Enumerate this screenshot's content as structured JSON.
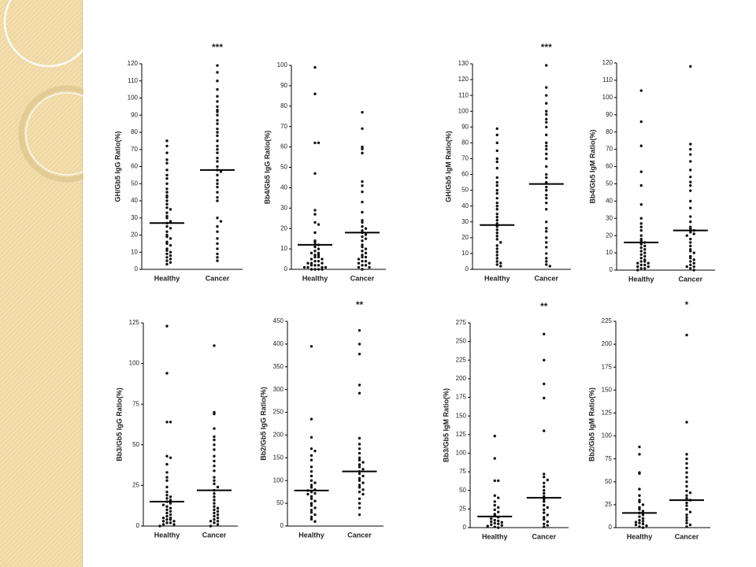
{
  "chart_data": [
    {
      "type": "strip",
      "y_label": "GH/Gb5 IgG Ratio(%)",
      "significance": "***",
      "categories": [
        "Healthy",
        "Cancer"
      ],
      "ylim": [
        0,
        120
      ],
      "yticks": [
        0,
        10,
        20,
        30,
        40,
        50,
        60,
        70,
        80,
        90,
        100,
        110,
        120
      ],
      "means": [
        27,
        58
      ],
      "values": [
        [
          75,
          72,
          68,
          64,
          62,
          58,
          55,
          53,
          50,
          47,
          45,
          43,
          42,
          40,
          38,
          36,
          35,
          33,
          31,
          30,
          28,
          27,
          25,
          24,
          22,
          20,
          19,
          18,
          16,
          15,
          14,
          12,
          11,
          10,
          9,
          8,
          7,
          6,
          5,
          4,
          3
        ],
        [
          119,
          115,
          110,
          105,
          101,
          98,
          95,
          93,
          92,
          90,
          87,
          85,
          82,
          80,
          78,
          75,
          72,
          70,
          68,
          65,
          63,
          60,
          58,
          57,
          55,
          52,
          50,
          48,
          45,
          42,
          40,
          30,
          28,
          25,
          22,
          18,
          15,
          12,
          9,
          7,
          5
        ]
      ]
    },
    {
      "type": "strip",
      "y_label": "Bb4/Gb5 IgG Ratio(%)",
      "categories": [
        "Healthy",
        "Cancer"
      ],
      "ylim": [
        0,
        100
      ],
      "yticks": [
        0,
        10,
        20,
        30,
        40,
        50,
        60,
        70,
        80,
        90,
        100
      ],
      "means": [
        12,
        18
      ],
      "values": [
        [
          99,
          86,
          62,
          62,
          47,
          29,
          27,
          23,
          22,
          18,
          14,
          13,
          12,
          11,
          10,
          9,
          8,
          8,
          7,
          7,
          6,
          6,
          5,
          5,
          4,
          4,
          3,
          3,
          3,
          2,
          2,
          2,
          1,
          1,
          1,
          1,
          0,
          0,
          0,
          0
        ],
        [
          77,
          69,
          60,
          59,
          57,
          43,
          41,
          38,
          33,
          28,
          24,
          23,
          21,
          20,
          19,
          18,
          17,
          16,
          15,
          14,
          12,
          11,
          10,
          9,
          8,
          7,
          6,
          6,
          5,
          4,
          4,
          3,
          3,
          2,
          2,
          1,
          1,
          0
        ]
      ]
    },
    {
      "type": "strip",
      "y_label": "GH/Gb5 IgM Ratio(%)",
      "significance": "***",
      "categories": [
        "Healthy",
        "Cancer"
      ],
      "ylim": [
        0,
        130
      ],
      "yticks": [
        0,
        10,
        20,
        30,
        40,
        50,
        60,
        70,
        80,
        90,
        100,
        110,
        120,
        130
      ],
      "means": [
        28,
        54
      ],
      "values": [
        [
          89,
          85,
          80,
          75,
          70,
          68,
          64,
          58,
          55,
          53,
          50,
          48,
          45,
          42,
          40,
          38,
          35,
          33,
          31,
          29,
          27,
          25,
          23,
          21,
          19,
          17,
          15,
          13,
          11,
          9,
          7,
          5,
          4,
          3,
          2
        ],
        [
          129,
          115,
          110,
          105,
          100,
          98,
          95,
          93,
          90,
          85,
          80,
          78,
          76,
          73,
          70,
          65,
          60,
          58,
          55,
          52,
          50,
          47,
          45,
          42,
          38,
          30,
          26,
          24,
          20,
          17,
          14,
          10,
          7,
          5,
          3,
          2
        ]
      ]
    },
    {
      "type": "strip",
      "y_label": "Bb4/Gb5 IgM Ratio(%)",
      "categories": [
        "Healthy",
        "Cancer"
      ],
      "ylim": [
        0,
        120
      ],
      "yticks": [
        0,
        10,
        20,
        30,
        40,
        50,
        60,
        70,
        80,
        90,
        100,
        110,
        120
      ],
      "means": [
        16,
        23
      ],
      "values": [
        [
          104,
          86,
          72,
          57,
          49,
          38,
          30,
          27,
          25,
          23,
          20,
          18,
          17,
          16,
          15,
          14,
          13,
          12,
          11,
          10,
          9,
          8,
          7,
          6,
          5,
          5,
          4,
          4,
          3,
          3,
          2,
          2,
          1,
          1,
          0
        ],
        [
          118,
          73,
          70,
          67,
          63,
          58,
          54,
          51,
          49,
          46,
          40,
          36,
          31,
          28,
          25,
          24,
          23,
          22,
          21,
          20,
          18,
          16,
          14,
          12,
          11,
          10,
          8,
          7,
          6,
          5,
          4,
          3,
          2,
          2,
          1,
          0
        ]
      ]
    },
    {
      "type": "strip",
      "y_label": "Bb3/Gb5 IgG Ratio(%)",
      "categories": [
        "Healthy",
        "Cancer"
      ],
      "ylim": [
        0,
        125
      ],
      "yticks": [
        0,
        25,
        50,
        75,
        100,
        125
      ],
      "means": [
        15,
        22
      ],
      "values": [
        [
          123,
          94,
          64,
          64,
          43,
          42,
          38,
          33,
          30,
          28,
          24,
          21,
          19,
          18,
          17,
          16,
          15,
          14,
          13,
          12,
          11,
          10,
          9,
          8,
          7,
          6,
          5,
          5,
          4,
          4,
          3,
          3,
          2,
          2,
          1,
          1,
          0
        ],
        [
          111,
          70,
          69,
          60,
          55,
          53,
          50,
          47,
          43,
          40,
          37,
          34,
          30,
          28,
          26,
          24,
          22,
          20,
          18,
          16,
          14,
          12,
          11,
          10,
          9,
          8,
          7,
          6,
          5,
          4,
          3,
          3,
          2,
          1,
          0
        ]
      ]
    },
    {
      "type": "strip",
      "y_label": "Bb2/Gb5 IgG Ratio(%)",
      "significance": "**",
      "categories": [
        "Healthy",
        "Cancer"
      ],
      "ylim": [
        0,
        450
      ],
      "yticks": [
        0,
        50,
        100,
        150,
        200,
        250,
        300,
        350,
        400,
        450
      ],
      "means": [
        78,
        120
      ],
      "values": [
        [
          395,
          235,
          195,
          170,
          165,
          155,
          145,
          130,
          120,
          110,
          100,
          95,
          90,
          85,
          80,
          78,
          75,
          72,
          70,
          65,
          60,
          55,
          50,
          45,
          40,
          35,
          30,
          25,
          20,
          15,
          10
        ],
        [
          430,
          400,
          378,
          310,
          292,
          193,
          180,
          170,
          160,
          150,
          145,
          140,
          135,
          130,
          125,
          120,
          115,
          110,
          105,
          100,
          95,
          90,
          85,
          80,
          75,
          70,
          60,
          50,
          40,
          25
        ]
      ]
    },
    {
      "type": "strip",
      "y_label": "Bb3/Gb5 IgM Ratio(%)",
      "significance": "**",
      "categories": [
        "Healthy",
        "Cancer"
      ],
      "ylim": [
        0,
        275
      ],
      "yticks": [
        0,
        25,
        50,
        75,
        100,
        125,
        150,
        175,
        200,
        225,
        250,
        275
      ],
      "means": [
        15,
        40
      ],
      "values": [
        [
          123,
          93,
          63,
          63,
          43,
          40,
          35,
          30,
          27,
          24,
          21,
          18,
          16,
          14,
          12,
          10,
          9,
          8,
          7,
          6,
          5,
          4,
          3,
          2,
          1,
          0
        ],
        [
          260,
          225,
          193,
          174,
          130,
          72,
          68,
          64,
          60,
          55,
          50,
          46,
          42,
          38,
          35,
          30,
          27,
          24,
          20,
          17,
          14,
          11,
          8,
          5,
          3,
          1
        ]
      ]
    },
    {
      "type": "strip",
      "y_label": "Bb2/Gb5 IgM Ratio(%)",
      "significance": "*",
      "categories": [
        "Healthy",
        "Cancer"
      ],
      "ylim": [
        0,
        225
      ],
      "yticks": [
        0,
        25,
        50,
        75,
        100,
        125,
        150,
        175,
        200,
        225
      ],
      "means": [
        16,
        30
      ],
      "values": [
        [
          88,
          80,
          60,
          59,
          42,
          35,
          30,
          28,
          25,
          22,
          20,
          18,
          16,
          14,
          12,
          10,
          8,
          7,
          6,
          5,
          4,
          3,
          2,
          1,
          0
        ],
        [
          210,
          115,
          80,
          75,
          70,
          65,
          60,
          55,
          50,
          45,
          40,
          38,
          35,
          32,
          30,
          27,
          24,
          20,
          17,
          14,
          11,
          8,
          5,
          3,
          1
        ]
      ]
    }
  ]
}
